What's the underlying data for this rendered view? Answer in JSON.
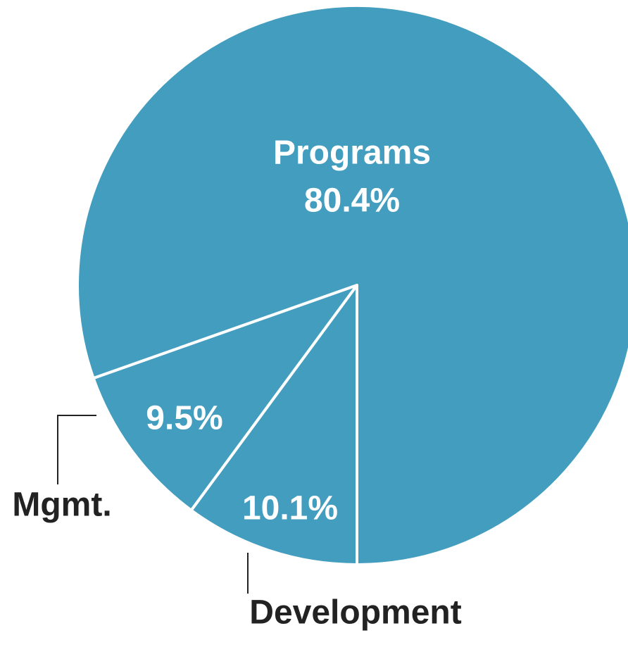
{
  "chart_data": {
    "type": "pie",
    "categories": [
      "Development",
      "Mgmt.",
      "Programs"
    ],
    "values": [
      10.1,
      9.5,
      80.4
    ],
    "value_labels": [
      "10.1%",
      "9.5%",
      "80.4%"
    ],
    "color": "#439dbf"
  }
}
